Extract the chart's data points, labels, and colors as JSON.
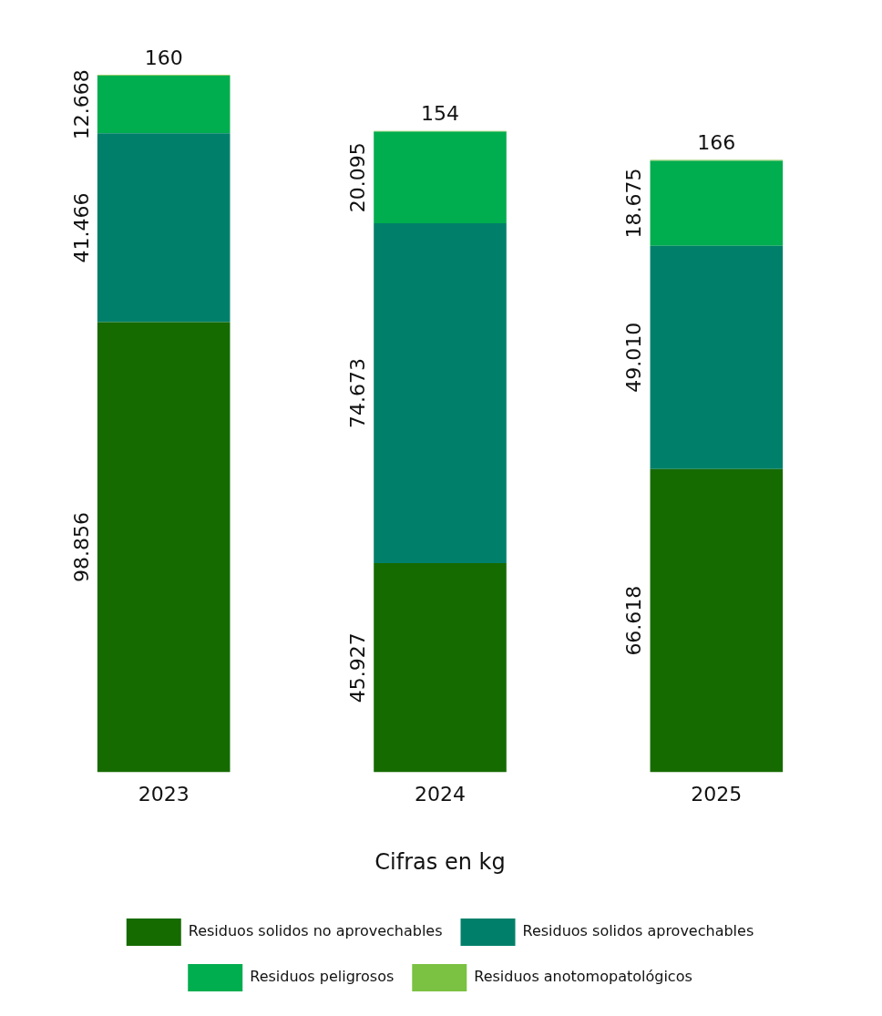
{
  "chart_data": {
    "type": "bar",
    "stacked": true,
    "categories": [
      "2023",
      "2024",
      "2025"
    ],
    "series": [
      {
        "name": "Residuos solidos no aprovechables",
        "color": "#156b00",
        "values": [
          98856,
          45927,
          66618
        ],
        "value_labels": [
          "98.856",
          "45.927",
          "66.618"
        ]
      },
      {
        "name": "Residuos solidos aprovechables",
        "color": "#00806a",
        "values": [
          41466,
          74673,
          49010
        ],
        "value_labels": [
          "41.466",
          "74.673",
          "49.010"
        ]
      },
      {
        "name": "Residuos peligrosos",
        "color": "#00ad4f",
        "values": [
          12668,
          20095,
          18675
        ],
        "value_labels": [
          "12.668",
          "20.095",
          "18.675"
        ]
      },
      {
        "name": "Residuos anotomopatológicos",
        "color": "#7bc142",
        "values": [
          160,
          154,
          166
        ],
        "value_labels": [
          "160",
          "154",
          "166"
        ]
      }
    ],
    "annotations": [
      "Cifras en kg"
    ],
    "grid": false,
    "legend": "bottom"
  }
}
